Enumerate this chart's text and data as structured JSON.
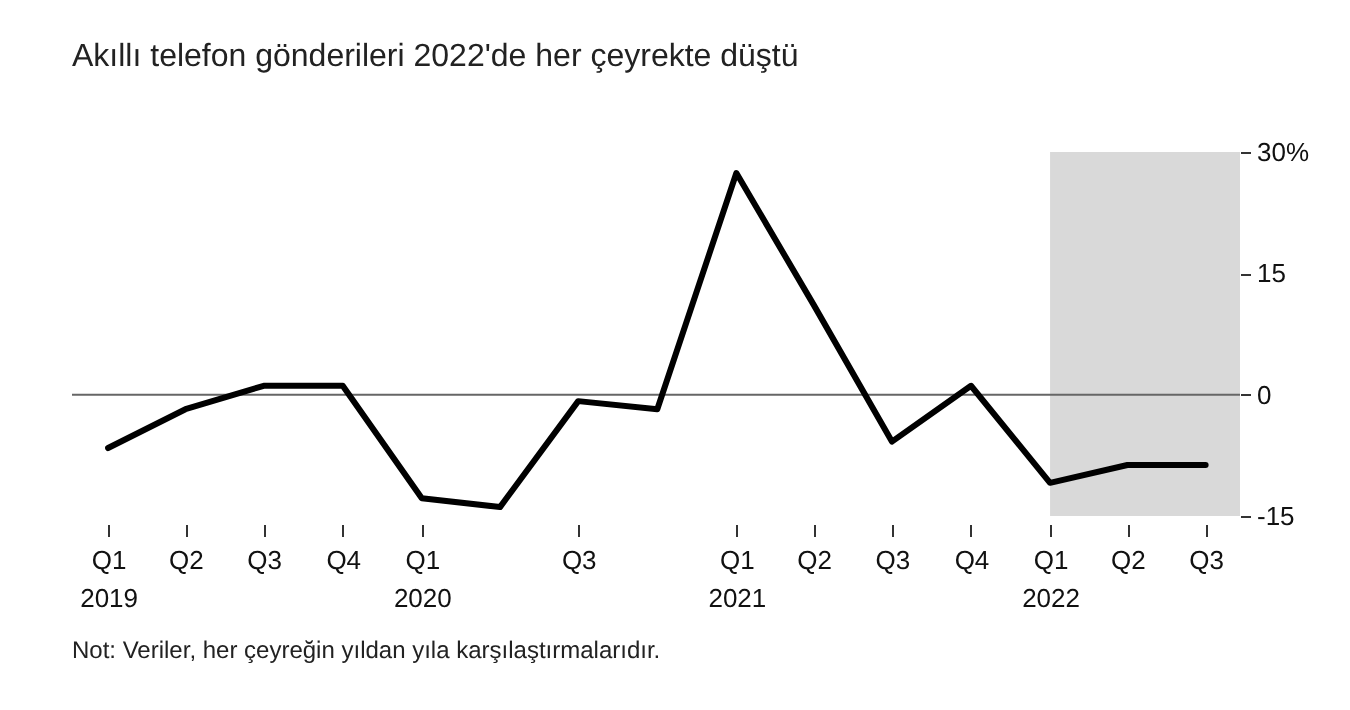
{
  "chart_data": {
    "type": "line",
    "title": "Akıllı telefon gönderileri 2022'de her çeyrekte düştü",
    "x": [
      "2019-01",
      "2019-04",
      "2019-07",
      "2019-10",
      "2020-01",
      "2020-04",
      "2020-07",
      "2020-10",
      "2021-01",
      "2021-04",
      "2021-07",
      "2021-10",
      "2022-01",
      "2022-04",
      "2022-07"
    ],
    "series": [
      {
        "color": "#000000",
        "values": [
          -6.6,
          -1.8,
          1.1,
          1.1,
          -12.8,
          -13.9,
          -0.8,
          -1.8,
          27.4,
          11.1,
          -5.8,
          1.1,
          -10.9,
          -8.7,
          -8.7
        ]
      }
    ],
    "xlim": [
      "2018-11-20",
      "2022-08-10"
    ],
    "xticks": [
      {
        "value": "2019-01",
        "label": "Q1 2019"
      },
      {
        "value": "2019-04",
        "label": "Q2"
      },
      {
        "value": "2019-07",
        "label": "Q3"
      },
      {
        "value": "2019-10",
        "label": "Q4"
      },
      {
        "value": "2020-01",
        "label": "Q1 2020"
      },
      {
        "value": "2020-07",
        "label": "Q3"
      },
      {
        "value": "2021-01",
        "label": "Q1 2021"
      },
      {
        "value": "2021-04",
        "label": "Q2"
      },
      {
        "value": "2021-07",
        "label": "Q3"
      },
      {
        "value": "2021-10",
        "label": "Q4"
      },
      {
        "value": "2022-01",
        "label": "Q1 2022"
      },
      {
        "value": "2022-04",
        "label": "Q2"
      },
      {
        "value": "2022-07",
        "label": "Q3"
      }
    ],
    "ylim": [
      -15,
      30
    ],
    "yticks": [
      -15,
      0,
      15,
      {
        "value": 30,
        "label": "30%"
      }
    ],
    "grid": false,
    "marker": "none",
    "line_style": "solid",
    "ref_lines": [
      {
        "axis": "y",
        "value": 0,
        "color": "#666666"
      }
    ],
    "bands": [
      {
        "axis": "x",
        "from": "2022-01",
        "to": "2022-08-10",
        "color": "#d9d9d9"
      }
    ],
    "annotations": [
      "Not: Veriler, her çeyreğin yıldan yıla karşılaştırmalarıdır."
    ]
  }
}
